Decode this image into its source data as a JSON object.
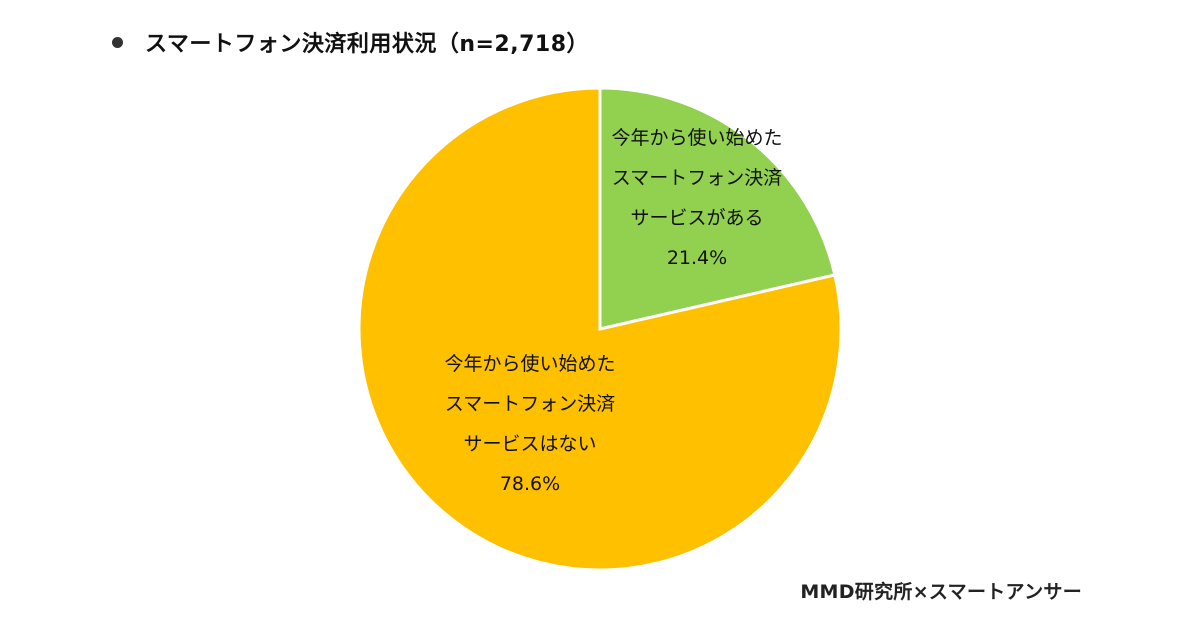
{
  "header": {
    "title": "スマートフォン決済利用状況（n=2,718）"
  },
  "chart_data": {
    "type": "pie",
    "title": "スマートフォン決済利用状況（n=2,718）",
    "categories": [
      "今年から使い始めたスマートフォン決済サービスがある",
      "今年から使い始めたスマートフォン決済サービスはない"
    ],
    "values": [
      21.4,
      78.6
    ],
    "unit": "%",
    "colors": [
      "#92D050",
      "#FFC000"
    ],
    "labels": [
      {
        "lines": [
          "今年から使い始めた",
          "スマートフォン決済",
          "サービスがある"
        ],
        "value_text": "21.4%"
      },
      {
        "lines": [
          "今年から使い始めた",
          "スマートフォン決済",
          "サービスはない"
        ],
        "value_text": "78.6%"
      }
    ],
    "start_angle": "12 o'clock",
    "direction": "clockwise",
    "legend": "none"
  },
  "footer": {
    "source": "MMD研究所×スマートアンサー"
  }
}
